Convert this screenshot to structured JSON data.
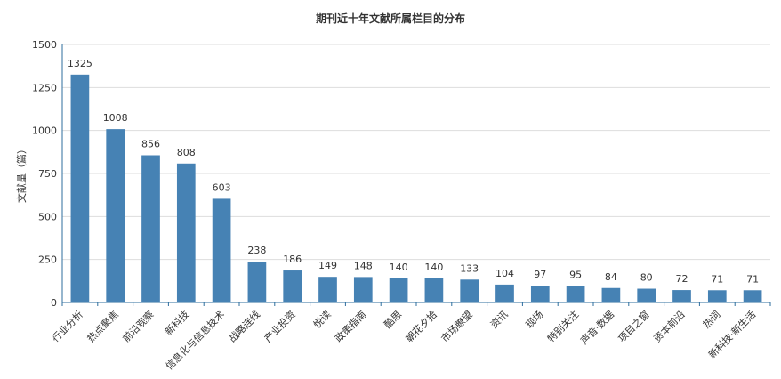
{
  "chart_data": {
    "type": "bar",
    "title": "期刊近十年文献所属栏目的分布",
    "xlabel": "",
    "ylabel": "文献量（篇）",
    "ylim": [
      0,
      1500
    ],
    "yticks": [
      0,
      250,
      500,
      750,
      1000,
      1250,
      1500
    ],
    "grid": true,
    "legend": "none",
    "bar_color": "#4682b4",
    "categories": [
      "行业分析",
      "热点聚焦",
      "前沿观察",
      "新科技",
      "信息化与信息技术",
      "战略连线",
      "产业投资",
      "悦读",
      "政策指南",
      "酷思",
      "朝花夕拾",
      "市场瞭望",
      "资讯",
      "现场",
      "特别关注",
      "声音·数据",
      "项目之窗",
      "资本前沿",
      "热词",
      "新科技·新生活"
    ],
    "values": [
      1325,
      1008,
      856,
      808,
      603,
      238,
      186,
      149,
      148,
      140,
      140,
      133,
      104,
      97,
      95,
      84,
      80,
      72,
      71,
      71
    ]
  }
}
